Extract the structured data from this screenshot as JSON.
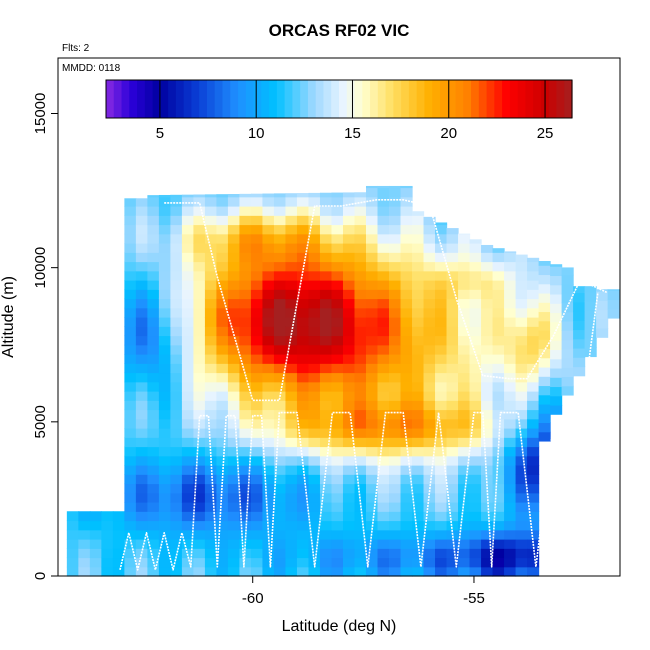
{
  "chart_data": {
    "type": "heatmap",
    "title": "ORCAS RF02 VIC",
    "notes": {
      "flights": "Flts: 2",
      "date": "MMDD: 0118"
    },
    "xlabel": "Latitude (deg N)",
    "ylabel": "Altitude (m)",
    "xlim": [
      -64.4,
      -51.7
    ],
    "ylim": [
      0,
      16800
    ],
    "xticks": [
      {
        "value": -60,
        "label": "-60"
      },
      {
        "value": -55,
        "label": "-55"
      }
    ],
    "yticks": [
      {
        "value": 0,
        "label": "0"
      },
      {
        "value": 5000,
        "label": "5000"
      },
      {
        "value": 10000,
        "label": "10000"
      },
      {
        "value": 15000,
        "label": "15000"
      }
    ],
    "colorbar": {
      "range": [
        2.2,
        26.4
      ],
      "ticks": [
        {
          "value": 5,
          "label": "5"
        },
        {
          "value": 10,
          "label": "10"
        },
        {
          "value": 15,
          "label": "15"
        },
        {
          "value": 20,
          "label": "20"
        },
        {
          "value": 25,
          "label": "25"
        }
      ],
      "stops": [
        {
          "v": 2.2,
          "c": "#8a2be2"
        },
        {
          "v": 3.5,
          "c": "#2b00d9"
        },
        {
          "v": 5,
          "c": "#0000a0"
        },
        {
          "v": 7,
          "c": "#0a3fd6"
        },
        {
          "v": 9,
          "c": "#1f8fff"
        },
        {
          "v": 11,
          "c": "#00c0ff"
        },
        {
          "v": 13,
          "c": "#9ed8ff"
        },
        {
          "v": 14.5,
          "c": "#e8f4ff"
        },
        {
          "v": 15.5,
          "c": "#ffffd0"
        },
        {
          "v": 17,
          "c": "#ffe066"
        },
        {
          "v": 19,
          "c": "#ffb000"
        },
        {
          "v": 21,
          "c": "#ff8000"
        },
        {
          "v": 23,
          "c": "#ff0000"
        },
        {
          "v": 25,
          "c": "#cc0000"
        },
        {
          "v": 26.4,
          "c": "#a52020"
        }
      ]
    },
    "flight_track": {
      "color": "#ffffff",
      "lat": [
        -63.0,
        -62.8,
        -62.6,
        -62.4,
        -62.2,
        -62.0,
        -61.8,
        -61.6,
        -61.4,
        -61.2,
        -61.0,
        -60.8,
        -60.6,
        -60.4,
        -60.2,
        -60.0,
        -59.8,
        -59.6,
        -59.4,
        -59.0,
        -58.6,
        -58.2,
        -57.8,
        -57.4,
        -57.0,
        -56.6,
        -56.2,
        -55.8,
        -55.4,
        -55.0,
        -54.8,
        -54.6,
        -54.4,
        -54.0,
        -53.6,
        -53.2,
        -53.0,
        -52.8,
        -52.6,
        -52.4,
        -52.2
      ],
      "alt": [
        200,
        1400,
        200,
        1400,
        200,
        1400,
        200,
        1400,
        300,
        5200,
        5200,
        300,
        5200,
        5200,
        300,
        5200,
        5200,
        300,
        5300,
        5300,
        300,
        5300,
        5300,
        300,
        5300,
        5300,
        300,
        5300,
        300,
        5300,
        5300,
        300,
        5300,
        5300,
        300,
        5000,
        300,
        2000,
        4500,
        7000,
        9200
      ]
    },
    "upper_track": {
      "lat": [
        -62.0,
        -61.2,
        -60.8,
        -60.0,
        -59.4,
        -58.6,
        -58.0,
        -57.2,
        -56.6,
        -56.0,
        -55.4,
        -54.8,
        -54.2,
        -53.8,
        -53.2,
        -52.6,
        -52.0
      ],
      "alt": [
        12100,
        12100,
        9700,
        5700,
        5700,
        12000,
        12000,
        12200,
        12200,
        12000,
        9000,
        6500,
        6400,
        6400,
        7800,
        9600,
        9200
      ]
    },
    "grid": false,
    "legend": "none"
  }
}
